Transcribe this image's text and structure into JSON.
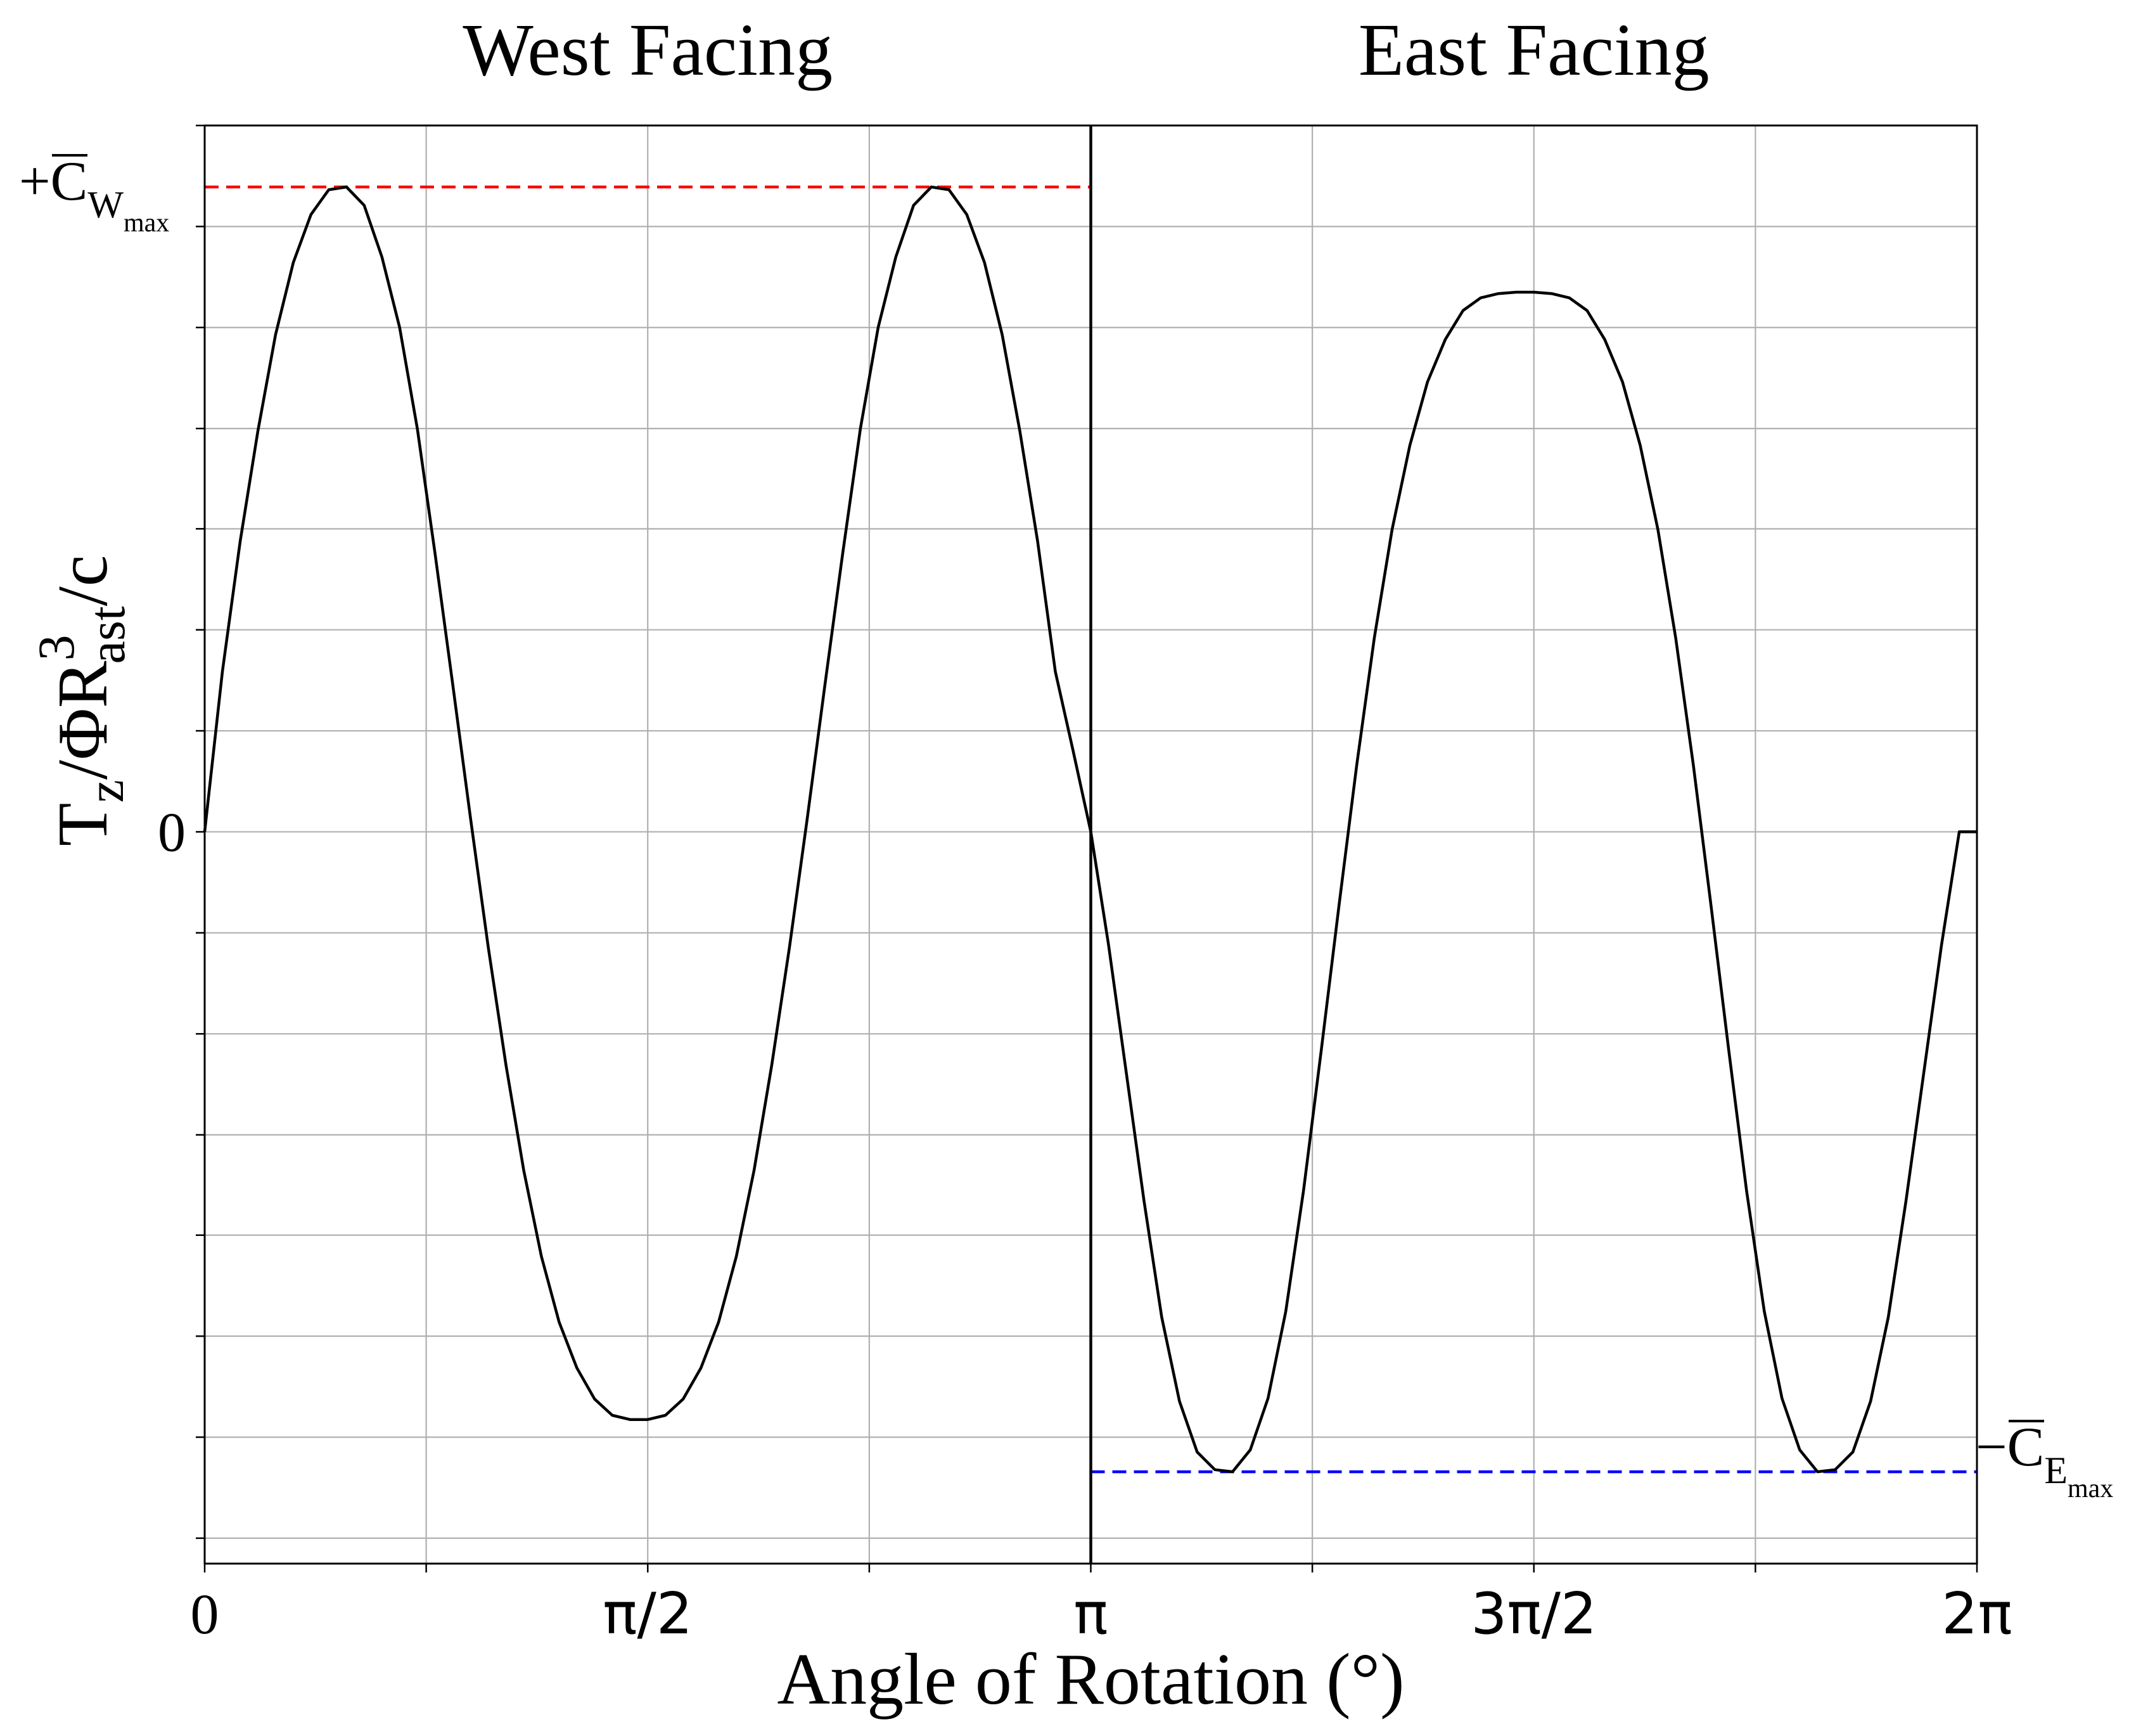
{
  "chart_data": {
    "type": "line",
    "panels": [
      {
        "title": "West Facing",
        "x_range": [
          0,
          3.14159265
        ]
      },
      {
        "title": "East Facing",
        "x_range": [
          3.14159265,
          6.28318531
        ]
      }
    ],
    "xlabel": "Angle of Rotation (°)",
    "xlim": [
      0,
      6.28318531
    ],
    "ylim": [
      -1.036,
      1.0
    ],
    "x_ticks": [
      {
        "value": 0,
        "label": "0"
      },
      {
        "value": 1.57079633,
        "label": "π/2"
      },
      {
        "value": 3.14159265,
        "label": "π"
      },
      {
        "value": 4.71238898,
        "label": "3π/2"
      },
      {
        "value": 6.28318531,
        "label": "2π"
      }
    ],
    "x_minor_ticks": [
      0.78539816,
      2.35619449,
      3.92699082,
      5.49778714
    ],
    "y_ticks": [
      {
        "value": 0,
        "label": "0"
      }
    ],
    "y_minor_ticks": [
      -1.0,
      -0.857,
      -0.714,
      -0.571,
      -0.429,
      -0.286,
      -0.143,
      0.143,
      0.286,
      0.429,
      0.571,
      0.714,
      0.857,
      1.0
    ],
    "grid": true,
    "ylabel": {
      "base": "T",
      "sub1": "z",
      "mid": "/ΦR",
      "sup": "3",
      "sub2": "ast",
      "tail": "/c"
    },
    "reference_lines": [
      {
        "name": "+C̅W_max",
        "y": 0.913,
        "x_range": [
          0,
          3.14159265
        ],
        "color": "#ff0000",
        "style": "dashed",
        "label": {
          "prefix": "+",
          "letter": "C",
          "sub": "W",
          "subsub": "max"
        }
      },
      {
        "name": "-C̅E_max",
        "y": -0.906,
        "x_range": [
          3.14159265,
          6.28318531
        ],
        "color": "#0000ff",
        "style": "dashed",
        "label": {
          "prefix": "−",
          "letter": "C",
          "sub": "E",
          "subsub": "max"
        }
      }
    ],
    "series": [
      {
        "color": "#000000",
        "points": [
          [
            0.0,
            0.0
          ],
          [
            0.0628,
            0.227
          ],
          [
            0.1257,
            0.411
          ],
          [
            0.1885,
            0.567
          ],
          [
            0.2513,
            0.704
          ],
          [
            0.3142,
            0.806
          ],
          [
            0.377,
            0.874
          ],
          [
            0.4398,
            0.909
          ],
          [
            0.5027,
            0.913
          ],
          [
            0.5655,
            0.887
          ],
          [
            0.6283,
            0.814
          ],
          [
            0.6912,
            0.714
          ],
          [
            0.754,
            0.571
          ],
          [
            0.8168,
            0.394
          ],
          [
            0.8796,
            0.208
          ],
          [
            0.9425,
            0.019
          ],
          [
            1.0053,
            -0.163
          ],
          [
            1.0681,
            -0.33
          ],
          [
            1.131,
            -0.479
          ],
          [
            1.1938,
            -0.601
          ],
          [
            1.2566,
            -0.694
          ],
          [
            1.3195,
            -0.759
          ],
          [
            1.3823,
            -0.803
          ],
          [
            1.4451,
            -0.826
          ],
          [
            1.508,
            -0.832
          ],
          [
            1.5708,
            -0.832
          ],
          [
            1.6336,
            -0.826
          ],
          [
            1.6965,
            -0.803
          ],
          [
            1.7593,
            -0.759
          ],
          [
            1.8221,
            -0.694
          ],
          [
            1.885,
            -0.601
          ],
          [
            1.9478,
            -0.479
          ],
          [
            2.0106,
            -0.33
          ],
          [
            2.0735,
            -0.163
          ],
          [
            2.1363,
            0.019
          ],
          [
            2.1991,
            0.208
          ],
          [
            2.2619,
            0.394
          ],
          [
            2.3248,
            0.571
          ],
          [
            2.3876,
            0.714
          ],
          [
            2.4504,
            0.814
          ],
          [
            2.5133,
            0.887
          ],
          [
            2.5761,
            0.913
          ],
          [
            2.6389,
            0.909
          ],
          [
            2.7018,
            0.874
          ],
          [
            2.7646,
            0.806
          ],
          [
            2.8274,
            0.704
          ],
          [
            2.8903,
            0.567
          ],
          [
            2.9531,
            0.411
          ],
          [
            3.0159,
            0.227
          ],
          [
            3.0788,
            0.115
          ],
          [
            3.1416,
            0.0
          ],
          [
            3.2044,
            -0.16
          ],
          [
            3.2673,
            -0.341
          ],
          [
            3.3301,
            -0.522
          ],
          [
            3.3929,
            -0.687
          ],
          [
            3.4558,
            -0.806
          ],
          [
            3.5186,
            -0.878
          ],
          [
            3.5814,
            -0.903
          ],
          [
            3.6442,
            -0.906
          ],
          [
            3.7071,
            -0.875
          ],
          [
            3.7699,
            -0.802
          ],
          [
            3.8327,
            -0.679
          ],
          [
            3.8956,
            -0.508
          ],
          [
            3.9584,
            -0.31
          ],
          [
            4.0212,
            -0.105
          ],
          [
            4.0841,
            0.094
          ],
          [
            4.1469,
            0.275
          ],
          [
            4.2097,
            0.428
          ],
          [
            4.2726,
            0.547
          ],
          [
            4.3354,
            0.637
          ],
          [
            4.3982,
            0.697
          ],
          [
            4.4611,
            0.738
          ],
          [
            4.5239,
            0.756
          ],
          [
            4.5867,
            0.762
          ],
          [
            4.6496,
            0.764
          ],
          [
            4.7124,
            0.764
          ],
          [
            4.7752,
            0.762
          ],
          [
            4.8381,
            0.756
          ],
          [
            4.9009,
            0.738
          ],
          [
            4.9637,
            0.697
          ],
          [
            5.0265,
            0.637
          ],
          [
            5.0894,
            0.547
          ],
          [
            5.1522,
            0.428
          ],
          [
            5.215,
            0.275
          ],
          [
            5.2779,
            0.094
          ],
          [
            5.3407,
            -0.105
          ],
          [
            5.4035,
            -0.31
          ],
          [
            5.4664,
            -0.508
          ],
          [
            5.5292,
            -0.679
          ],
          [
            5.592,
            -0.802
          ],
          [
            5.6549,
            -0.875
          ],
          [
            5.7177,
            -0.906
          ],
          [
            5.7805,
            -0.903
          ],
          [
            5.8434,
            -0.878
          ],
          [
            5.9062,
            -0.806
          ],
          [
            5.969,
            -0.687
          ],
          [
            6.0319,
            -0.522
          ],
          [
            6.0947,
            -0.341
          ],
          [
            6.1575,
            -0.16
          ],
          [
            6.2204,
            0.0
          ],
          [
            6.2832,
            0.0
          ]
        ]
      }
    ]
  }
}
